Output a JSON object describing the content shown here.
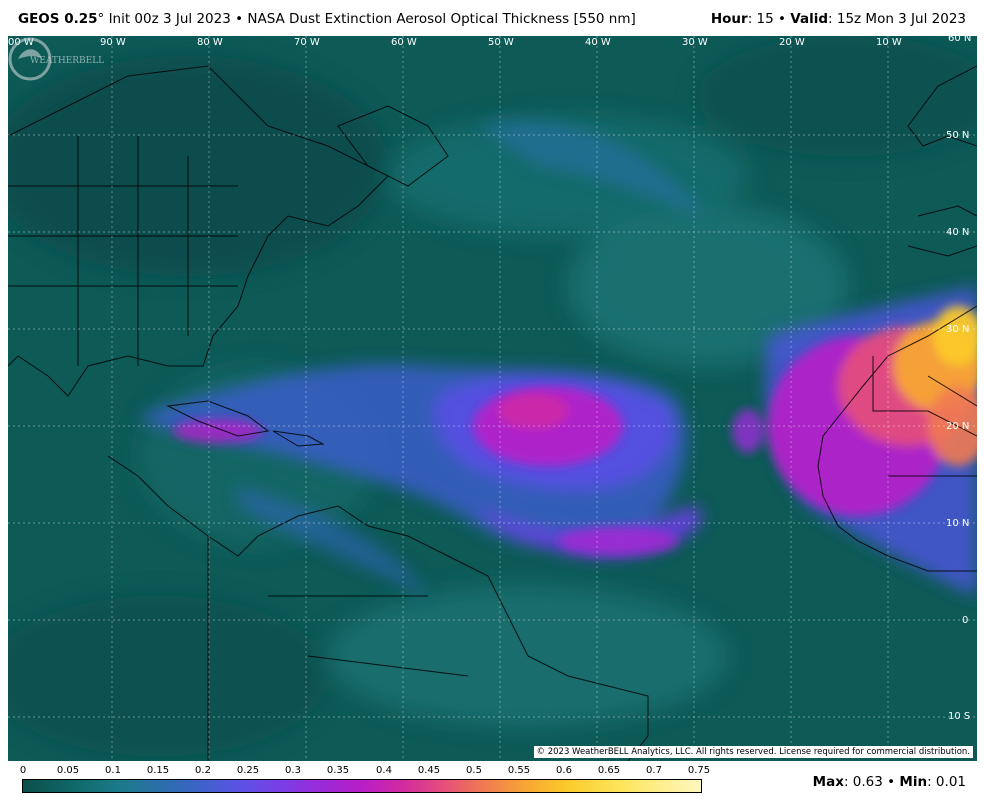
{
  "header": {
    "model": "GEOS 0.25",
    "degree": "°",
    "init": "Init 00z 3 Jul 2023",
    "sep": "•",
    "product": "NASA Dust Extinction Aerosol Optical Thickness [550 nm]",
    "hour_label": "Hour",
    "hour_value": ": 15",
    "valid_label": "Valid",
    "valid_value": ": 15z Mon 3 Jul 2023"
  },
  "map": {
    "lon_labels": [
      "00 W",
      "90 W",
      "80 W",
      "70 W",
      "60 W",
      "50 W",
      "40 W",
      "30 W",
      "20 W",
      "10 W",
      "60 N"
    ],
    "lat_labels": [
      "50 N",
      "40 N",
      "30 N",
      "20 N",
      "10 N",
      "0",
      "10 S"
    ],
    "copyright": "© 2023 WeatherBELL Analytics, LLC. All rights reserved. License required for commercial distribution.",
    "logo_text": "WEATHERBELL"
  },
  "legend": {
    "ticks": [
      "0",
      "0.05",
      "0.1",
      "0.15",
      "0.2",
      "0.25",
      "0.3",
      "0.35",
      "0.4",
      "0.45",
      "0.5",
      "0.55",
      "0.6",
      "0.65",
      "0.7",
      "0.75"
    ],
    "max_label": "Max",
    "max_value": ": 0.63",
    "min_label": "Min",
    "min_value": ": 0.01"
  },
  "colors": {
    "ocean": "#0d5a57",
    "low": "#3c63c8",
    "mid": "#9a2ad8",
    "high": "#fbc92a"
  }
}
